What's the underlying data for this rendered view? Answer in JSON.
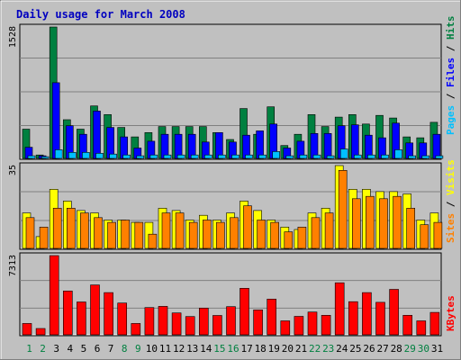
{
  "chart_data": {
    "type": "bar",
    "title": "Daily usage for March 2008",
    "categories": [
      "1",
      "2",
      "3",
      "4",
      "5",
      "6",
      "7",
      "8",
      "9",
      "10",
      "11",
      "12",
      "13",
      "14",
      "15",
      "16",
      "17",
      "18",
      "19",
      "20",
      "21",
      "22",
      "23",
      "24",
      "25",
      "26",
      "27",
      "28",
      "29",
      "30",
      "31"
    ],
    "weekend_days": [
      "1",
      "2",
      "8",
      "9",
      "15",
      "16",
      "22",
      "23",
      "29",
      "30"
    ],
    "panels": [
      {
        "id": "hits",
        "ymax_label": "1528",
        "ymax": 1528,
        "series": [
          {
            "name": "Hits",
            "color": "#008040",
            "values": [
              340,
              40,
              1528,
              450,
              340,
              610,
              510,
              360,
              250,
              300,
              370,
              370,
              370,
              370,
              300,
              220,
              580,
              280,
              600,
              150,
              280,
              510,
              370,
              480,
              510,
              400,
              500,
              470,
              250,
              240,
              420
            ]
          },
          {
            "name": "Files",
            "color": "#0000ff",
            "values": [
              130,
              30,
              880,
              380,
              280,
              550,
              360,
              250,
              120,
              200,
              280,
              280,
              280,
              190,
              300,
              190,
              270,
              320,
              400,
              120,
              200,
              290,
              290,
              380,
              390,
              270,
              240,
              410,
              180,
              180,
              280
            ]
          },
          {
            "name": "Pages",
            "color": "#00c0ff",
            "values": [
              30,
              20,
              100,
              70,
              70,
              60,
              50,
              40,
              30,
              40,
              40,
              40,
              40,
              40,
              40,
              40,
              40,
              40,
              80,
              30,
              40,
              40,
              30,
              110,
              40,
              40,
              40,
              100,
              30,
              30,
              30
            ]
          }
        ],
        "legend": [
          {
            "text": "Pages",
            "color": "#00c0ff"
          },
          {
            "text": " / ",
            "color": "#000000"
          },
          {
            "text": "Files",
            "color": "#0000ff"
          },
          {
            "text": " / ",
            "color": "#000000"
          },
          {
            "text": "Hits",
            "color": "#008040"
          }
        ]
      },
      {
        "id": "visits",
        "ymax_label": "35",
        "ymax": 35,
        "series": [
          {
            "name": "Visits",
            "color": "#ffff00",
            "values": [
              15,
              5,
              25,
              20,
              16,
              15,
              12,
              12,
              11,
              11,
              17,
              16,
              12,
              14,
              12,
              15,
              20,
              16,
              12,
              9,
              8,
              15,
              17,
              35,
              25,
              25,
              24,
              24,
              23,
              12,
              15
            ]
          },
          {
            "name": "Sites",
            "color": "#ff8000",
            "values": [
              13,
              9,
              17,
              17,
              15,
              13,
              11,
              12,
              11,
              6,
              15,
              15,
              11,
              12,
              11,
              13,
              18,
              12,
              11,
              7,
              9,
              13,
              15,
              33,
              21,
              22,
              21,
              22,
              17,
              10,
              11
            ]
          }
        ],
        "legend": [
          {
            "text": "Sites",
            "color": "#ff8000"
          },
          {
            "text": " / ",
            "color": "#000000"
          },
          {
            "text": "Visits",
            "color": "#ffff00"
          }
        ]
      },
      {
        "id": "kbytes",
        "ymax_label": "7313",
        "ymax": 7313,
        "series": [
          {
            "name": "KBytes",
            "color": "#ff0000",
            "values": [
              1050,
              580,
              7313,
              4050,
              3030,
              4600,
              3900,
              2930,
              1050,
              2520,
              2630,
              2020,
              1690,
              2470,
              1790,
              2600,
              4300,
              2300,
              3300,
              1290,
              1700,
              2100,
              1800,
              4800,
              3060,
              3900,
              3000,
              4200,
              1800,
              1290,
              2070
            ]
          }
        ],
        "legend": [
          {
            "text": "KBytes",
            "color": "#ff0000"
          }
        ]
      }
    ]
  }
}
